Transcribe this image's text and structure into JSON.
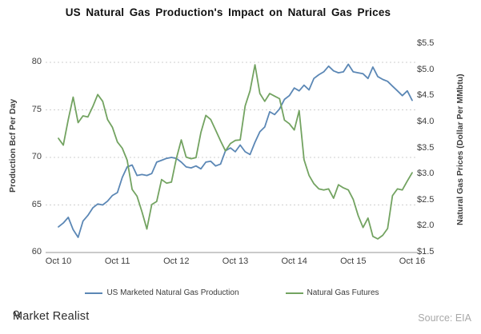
{
  "chart_data": {
    "type": "line",
    "title": "US Natural Gas Production's Impact on Natural Gas Prices",
    "x_unit": "month",
    "x_start": "Oct 2010",
    "x_end": "Oct 2016",
    "x_ticks": [
      {
        "label": "Oct 10",
        "month": 0
      },
      {
        "label": "Oct 11",
        "month": 12
      },
      {
        "label": "Oct 12",
        "month": 24
      },
      {
        "label": "Oct 13",
        "month": 36
      },
      {
        "label": "Oct 14",
        "month": 48
      },
      {
        "label": "Oct 15",
        "month": 60
      },
      {
        "label": "Oct 16",
        "month": 72
      }
    ],
    "left_axis": {
      "label": "Production Bcf Per Day",
      "range": [
        60,
        80
      ],
      "ticks": [
        {
          "label": "80",
          "value": 80
        },
        {
          "label": "75",
          "value": 75
        },
        {
          "label": "70",
          "value": 70
        },
        {
          "label": "65",
          "value": 65
        },
        {
          "label": "60",
          "value": 60
        }
      ]
    },
    "right_axis": {
      "label": "Natural Gas Prices (Dollar Per MMbtu)",
      "range": [
        1.5,
        5.5
      ],
      "ticks": [
        {
          "label": "$5.5",
          "value": 5.5
        },
        {
          "label": "$5.0",
          "value": 5.0
        },
        {
          "label": "$4.5",
          "value": 4.5
        },
        {
          "label": "$4.0",
          "value": 4.0
        },
        {
          "label": "$3.5",
          "value": 3.5
        },
        {
          "label": "$3.0",
          "value": 3.0
        },
        {
          "label": "$2.5",
          "value": 2.5
        },
        {
          "label": "$2.0",
          "value": 2.0
        },
        {
          "label": "$1.5",
          "value": 1.5
        }
      ]
    },
    "gridlines": {
      "at_left_values": [
        65,
        70,
        75,
        80
      ],
      "style": "dotted",
      "color": "#cfcfcf"
    },
    "baseline_color": "#b8b8b8",
    "legend_position": "bottom",
    "series": [
      {
        "id": "production-line",
        "name": "US Marketed Natural Gas Production",
        "axis": "left",
        "color": "#5b87b5",
        "values": [
          62.7,
          63.1,
          63.7,
          62.4,
          61.6,
          63.3,
          63.9,
          64.7,
          65.1,
          65.0,
          65.4,
          66.0,
          66.3,
          67.9,
          69.0,
          69.2,
          68.1,
          68.2,
          68.1,
          68.3,
          69.5,
          69.7,
          69.9,
          70.0,
          69.9,
          69.5,
          69.0,
          68.9,
          69.1,
          68.8,
          69.5,
          69.6,
          69.1,
          69.3,
          70.7,
          71.0,
          70.6,
          71.3,
          70.6,
          70.3,
          71.6,
          72.7,
          73.2,
          74.8,
          74.5,
          75.1,
          76.1,
          76.5,
          77.3,
          77.0,
          77.6,
          77.1,
          78.3,
          78.7,
          79.0,
          79.6,
          79.1,
          78.9,
          79.0,
          79.8,
          79.0,
          78.9,
          78.8,
          78.3,
          79.5,
          78.5,
          78.2,
          78.0,
          77.5,
          77.0,
          76.5,
          77.0,
          76.0
        ]
      },
      {
        "id": "futures-line",
        "name": "Natural Gas Futures",
        "axis": "right",
        "color": "#73a361",
        "values": [
          3.69,
          3.56,
          4.05,
          4.48,
          3.99,
          4.12,
          4.1,
          4.3,
          4.53,
          4.4,
          4.05,
          3.9,
          3.62,
          3.5,
          3.27,
          2.71,
          2.58,
          2.28,
          1.95,
          2.42,
          2.48,
          2.9,
          2.83,
          2.85,
          3.3,
          3.66,
          3.33,
          3.3,
          3.32,
          3.8,
          4.13,
          4.05,
          3.85,
          3.64,
          3.45,
          3.59,
          3.65,
          3.66,
          4.31,
          4.6,
          5.1,
          4.55,
          4.4,
          4.55,
          4.5,
          4.45,
          4.04,
          3.97,
          3.85,
          4.22,
          3.28,
          2.98,
          2.82,
          2.72,
          2.7,
          2.72,
          2.54,
          2.8,
          2.74,
          2.7,
          2.52,
          2.21,
          1.98,
          2.16,
          1.81,
          1.76,
          1.83,
          1.96,
          2.59,
          2.72,
          2.7,
          2.87,
          3.03
        ]
      }
    ]
  },
  "footer": {
    "brand": "Market Realist",
    "brand_icon": "magnifier-icon",
    "source": "Source: EIA"
  }
}
